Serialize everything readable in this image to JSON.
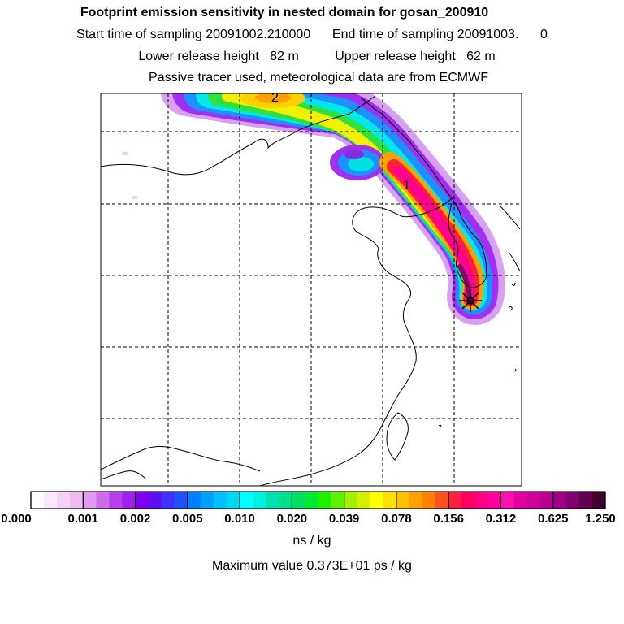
{
  "titles": {
    "line1": "Footprint emission sensitivity in nested domain for gosan_200910",
    "line2": "Start time of sampling 20091002.210000      End time of sampling 20091003.      0",
    "line3": "Lower release height   82 m          Upper release height   62 m",
    "line4": "Passive tracer used, meteorological data are from ECMWF"
  },
  "plume_labels": {
    "label_2": "2",
    "label_1": "1"
  },
  "colorbar": {
    "ticks": [
      "0.000",
      "0.001",
      "0.002",
      "0.005",
      "0.010",
      "0.020",
      "0.039",
      "0.078",
      "0.156",
      "0.312",
      "0.625",
      "1.250"
    ],
    "units": "ns / kg",
    "colors": [
      "#ffffff",
      "#fce8fc",
      "#f6d0f6",
      "#eebaf4",
      "#e29af0",
      "#cc6ce8",
      "#b53fea",
      "#a020f0",
      "#8000f0",
      "#6010f0",
      "#4030ff",
      "#2050ff",
      "#0080ff",
      "#00a0ff",
      "#00c0ff",
      "#00d8f0",
      "#00ffff",
      "#00f0e0",
      "#00e0b0",
      "#00e08c",
      "#00e060",
      "#00e830",
      "#20f000",
      "#60f000",
      "#a0f000",
      "#d0f000",
      "#ffff00",
      "#ffe000",
      "#ffc000",
      "#ffa000",
      "#ff8000",
      "#ff5020",
      "#ff2040",
      "#ff0060",
      "#ff0080",
      "#ff00a0",
      "#ff10b0",
      "#e000a0",
      "#d00098",
      "#b80090",
      "#a00088",
      "#800070",
      "#600050",
      "#400030"
    ]
  },
  "max_value": "Maximum value  0.373E+01 ps / kg"
}
